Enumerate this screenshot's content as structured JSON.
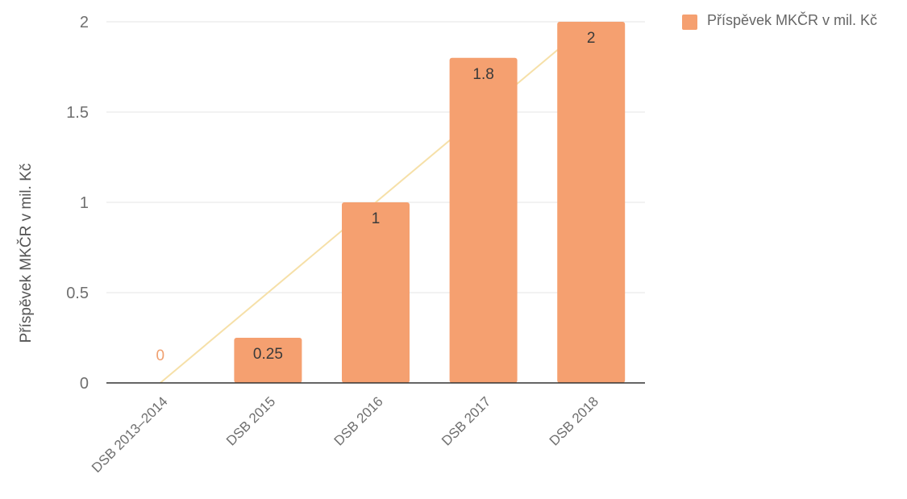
{
  "chart_data": {
    "type": "bar",
    "categories": [
      "DSB 2013–2014",
      "DSB 2015",
      "DSB 2016",
      "DSB 2017",
      "DSB 2018"
    ],
    "series": [
      {
        "name": "Příspěvek MKČR v mil. Kč",
        "values": [
          0,
          0.25,
          1,
          1.8,
          2
        ],
        "data_labels": [
          "0",
          "0.25",
          "1",
          "1.8",
          "2"
        ]
      }
    ],
    "ylabel": "Příspěvek MKČR v mil. Kč",
    "ylim": [
      0,
      2
    ],
    "yticks": [
      0,
      0.5,
      1,
      1.5,
      2
    ],
    "ytick_labels": [
      "0",
      "0.5",
      "1",
      "1.5",
      "2"
    ],
    "grid": true,
    "legend_position": "top-right",
    "trendline": {
      "from": [
        0,
        0
      ],
      "to": [
        4,
        2
      ]
    },
    "colors": {
      "bar": "#f5a070",
      "trendline": "#f6e0a8",
      "grid": "#e6e6e6",
      "baseline": "#333333"
    }
  }
}
